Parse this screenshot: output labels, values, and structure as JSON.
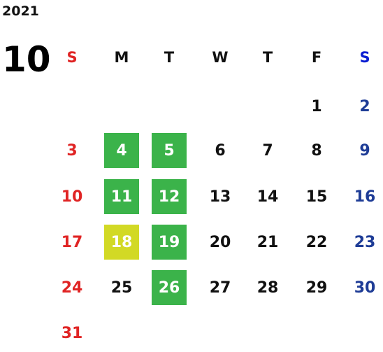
{
  "year": "2021",
  "month": "10",
  "weekdays": [
    "S",
    "M",
    "T",
    "W",
    "T",
    "F",
    "S"
  ],
  "weeks": [
    [
      null,
      null,
      null,
      null,
      null,
      "1",
      "2"
    ],
    [
      "3",
      {
        "text": "4",
        "fill": "#3bb34a"
      },
      {
        "text": "5",
        "fill": "#3bb34a"
      },
      "6",
      "7",
      "8",
      "9"
    ],
    [
      "10",
      {
        "text": "11",
        "fill": "#3bb34a"
      },
      {
        "text": "12",
        "fill": "#3bb34a"
      },
      "13",
      "14",
      "15",
      "16"
    ],
    [
      "17",
      {
        "text": "18",
        "fill": "#d2d925"
      },
      {
        "text": "19",
        "fill": "#3bb34a"
      },
      "20",
      "21",
      "22",
      "23"
    ],
    [
      "24",
      "25",
      {
        "text": "26",
        "fill": "#3bb34a"
      },
      "27",
      "28",
      "29",
      "30"
    ],
    [
      "31",
      null,
      null,
      null,
      null,
      null,
      null
    ]
  ]
}
